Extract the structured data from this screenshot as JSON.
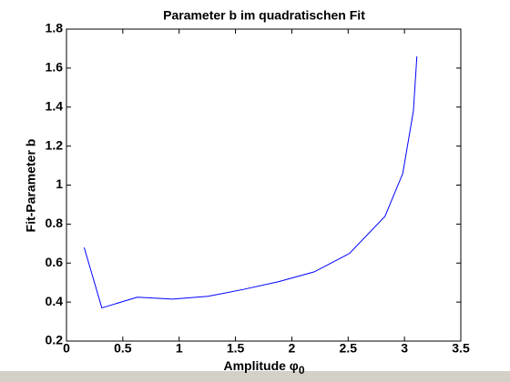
{
  "chart_data": {
    "type": "line",
    "title": "Parameter b im quadratischen Fit",
    "x_label": "Amplitude φ",
    "x_label_subscript": "0",
    "y_label": "Fit-Parameter b",
    "x": [
      0.157,
      0.314,
      0.628,
      0.942,
      1.257,
      1.571,
      1.885,
      2.199,
      2.513,
      2.827,
      2.985,
      3.079,
      3.11
    ],
    "series": [
      {
        "name": "b",
        "color": "#0000ff",
        "values": [
          0.68,
          0.37,
          0.425,
          0.415,
          0.43,
          0.465,
          0.505,
          0.555,
          0.65,
          0.84,
          1.06,
          1.38,
          1.66
        ]
      }
    ],
    "xlim": [
      0,
      3.5
    ],
    "xticks": [
      0,
      0.5,
      1,
      1.5,
      2,
      2.5,
      3,
      3.5
    ],
    "ylim": [
      0.2,
      1.8
    ],
    "yticks": [
      0.2,
      0.4,
      0.6,
      0.8,
      1,
      1.2,
      1.4,
      1.6,
      1.8
    ]
  }
}
